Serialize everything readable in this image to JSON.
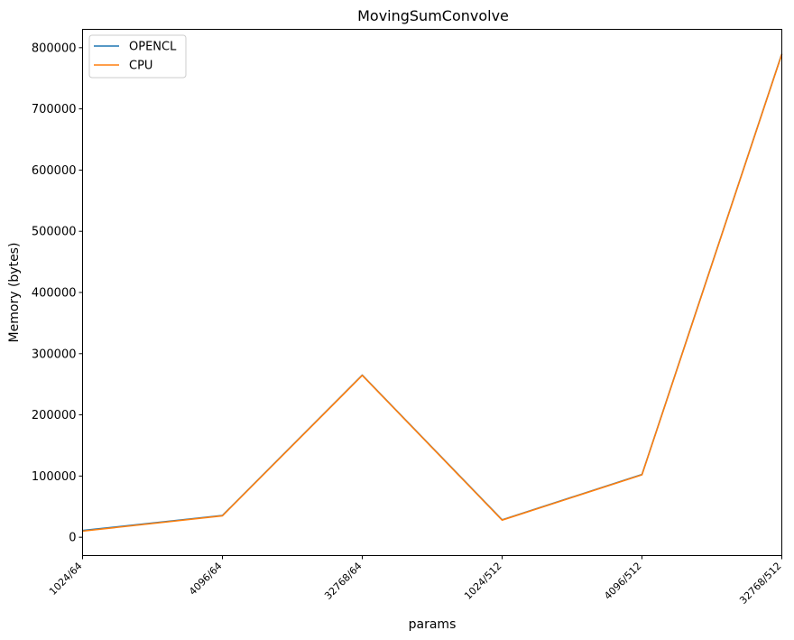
{
  "chart_data": {
    "type": "line",
    "title": "MovingSumConvolve",
    "xlabel": "params",
    "ylabel": "Memory (bytes)",
    "categories": [
      "1024/64",
      "4096/64",
      "32768/64",
      "1024/512",
      "4096/512",
      "32768/512"
    ],
    "ylim": [
      -30000,
      830000
    ],
    "yticks": [
      0,
      100000,
      200000,
      300000,
      400000,
      500000,
      600000,
      700000,
      800000
    ],
    "series": [
      {
        "name": "OPENCL",
        "color": "#1f77b4",
        "values": [
          11000,
          35500,
          265000,
          28500,
          102500,
          790000
        ]
      },
      {
        "name": "CPU",
        "color": "#ff7f0e",
        "values": [
          10000,
          35000,
          264500,
          28000,
          102000,
          789500
        ]
      }
    ],
    "legend": "top-left",
    "grid": false
  }
}
